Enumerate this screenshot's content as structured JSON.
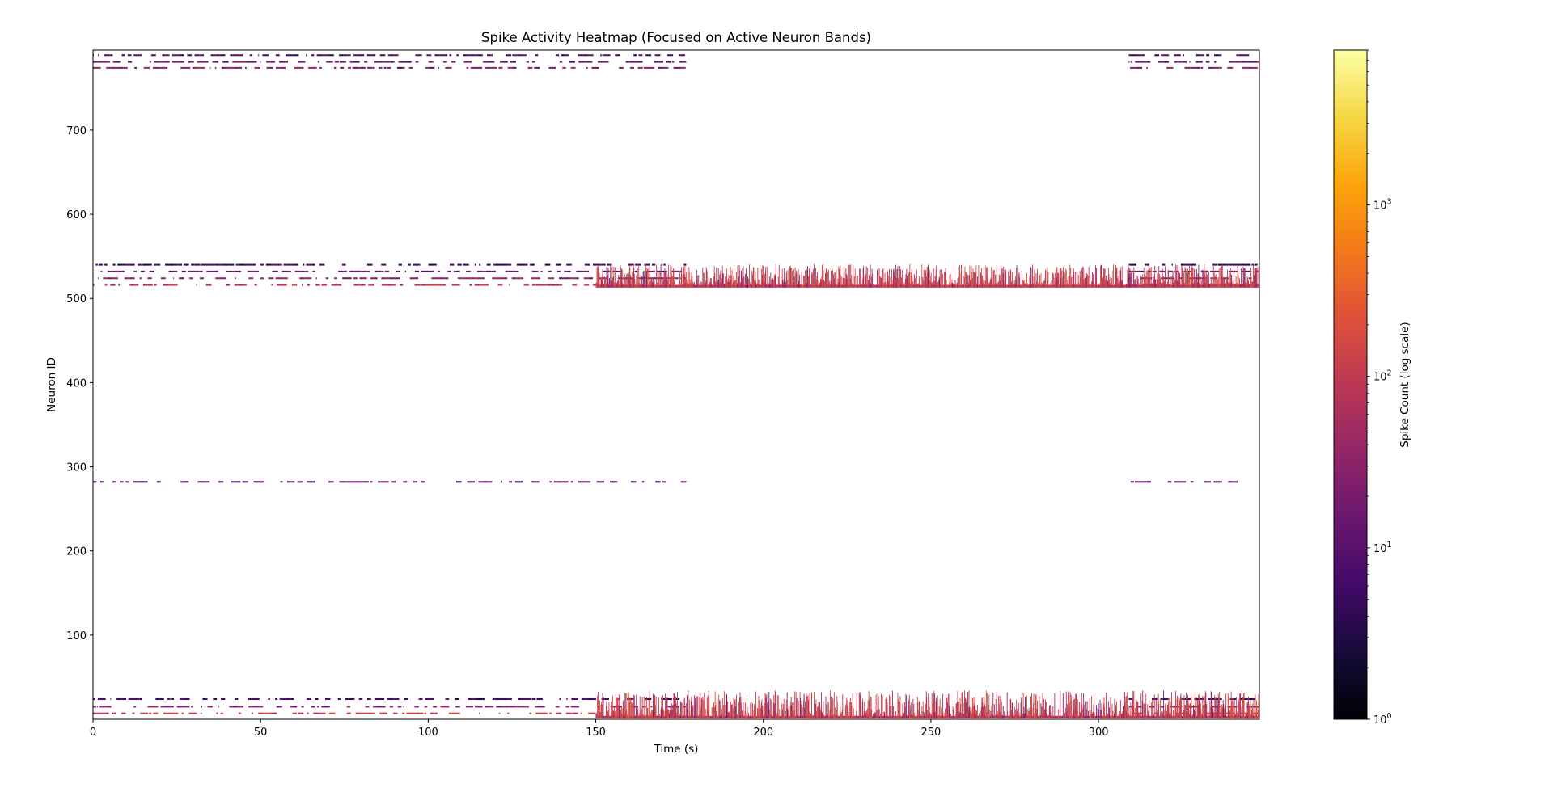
{
  "chart_data": {
    "type": "heatmap",
    "title": "Spike Activity Heatmap (Focused on Active Neuron Bands)",
    "xlabel": "Time (s)",
    "ylabel": "Neuron ID",
    "xlim": [
      0,
      348
    ],
    "ylim": [
      0,
      795
    ],
    "xticks": [
      0,
      50,
      100,
      150,
      200,
      250,
      300
    ],
    "yticks": [
      100,
      200,
      300,
      400,
      500,
      600,
      700
    ],
    "grid": false,
    "colormap": "inferno",
    "colorbar": {
      "label": "Spike Count (log scale)",
      "scale": "log",
      "range": [
        1,
        8000
      ],
      "ticks": [
        {
          "value": 1,
          "base": "10",
          "exp": "0"
        },
        {
          "value": 10,
          "base": "10",
          "exp": "1"
        },
        {
          "value": 100,
          "base": "10",
          "exp": "2"
        },
        {
          "value": 1000,
          "base": "10",
          "exp": "3"
        }
      ]
    },
    "sparse_bands": [
      {
        "neurons": [
          790,
          788
        ],
        "segments": [
          [
            0,
            177
          ],
          [
            309,
            348
          ]
        ],
        "level": 8
      },
      {
        "neurons": [
          782,
          780
        ],
        "segments": [
          [
            0,
            177
          ],
          [
            309,
            348
          ]
        ],
        "level": 15
      },
      {
        "neurons": [
          775,
          773
        ],
        "segments": [
          [
            0,
            177
          ],
          [
            309,
            348
          ]
        ],
        "level": 30
      },
      {
        "neurons": [
          541,
          539
        ],
        "segments": [
          [
            0,
            177
          ],
          [
            309,
            348
          ]
        ],
        "level": 6
      },
      {
        "neurons": [
          533,
          531
        ],
        "segments": [
          [
            0,
            177
          ],
          [
            309,
            348
          ]
        ],
        "level": 15
      },
      {
        "neurons": [
          525,
          523
        ],
        "segments": [
          [
            0,
            177
          ],
          [
            309,
            348
          ]
        ],
        "level": 35
      },
      {
        "neurons": [
          517,
          515
        ],
        "segments": [
          [
            0,
            150
          ],
          [
            309,
            348
          ]
        ],
        "level": 90
      },
      {
        "neurons": [
          283,
          281
        ],
        "segments": [
          [
            0,
            177
          ],
          [
            309,
            348
          ]
        ],
        "level": 12
      },
      {
        "neurons": [
          25,
          23
        ],
        "segments": [
          [
            0,
            177
          ],
          [
            309,
            348
          ]
        ],
        "level": 6
      },
      {
        "neurons": [
          16,
          14
        ],
        "segments": [
          [
            0,
            177
          ],
          [
            309,
            348
          ]
        ],
        "level": 25
      },
      {
        "neurons": [
          8,
          6
        ],
        "segments": [
          [
            0,
            150
          ],
          [
            309,
            348
          ]
        ],
        "level": 120
      }
    ],
    "dense_bands": [
      {
        "neuron_range": [
          513,
          540
        ],
        "time_range": [
          150,
          348
        ],
        "peak_level": 250,
        "baseline_level": 80
      },
      {
        "neuron_range": [
          1,
          34
        ],
        "time_range": [
          150,
          348
        ],
        "peak_level": 250,
        "baseline_level": 80
      }
    ],
    "notes": [
      "Sparse activity up to t≈177 s, resumes at t≈309 s",
      "Dense burst activity from t≈150 s onward in bands near neurons 0–30 and 510–540"
    ]
  }
}
